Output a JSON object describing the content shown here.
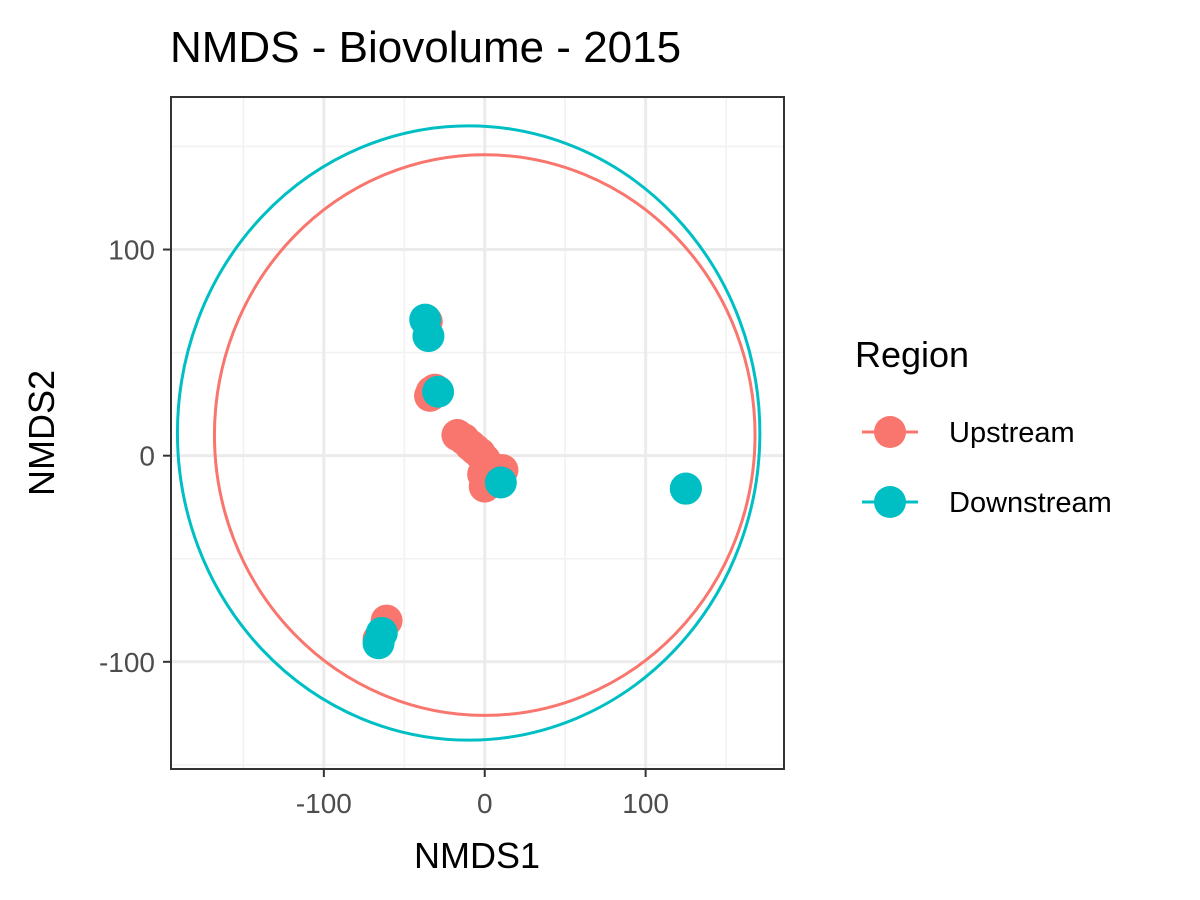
{
  "chart_data": {
    "type": "scatter",
    "title": "NMDS - Biovolume - 2015",
    "xlabel": "NMDS1",
    "ylabel": "NMDS2",
    "xlim": [
      -195,
      186
    ],
    "ylim": [
      -152,
      174
    ],
    "x_ticks": [
      -100,
      0,
      100
    ],
    "y_ticks": [
      -100,
      0,
      100
    ],
    "x_tick_labels": [
      "-100",
      "0",
      "100"
    ],
    "y_tick_labels": [
      "-100",
      "0",
      "100"
    ],
    "grid": true,
    "legend": {
      "title": "Region",
      "position": "right"
    },
    "series": [
      {
        "name": "Upstream",
        "color": "#F8766D",
        "points": [
          {
            "x": -36,
            "y": 65
          },
          {
            "x": -33,
            "y": 31
          },
          {
            "x": -31,
            "y": 32
          },
          {
            "x": -34,
            "y": 29
          },
          {
            "x": -17,
            "y": 10
          },
          {
            "x": -13,
            "y": 8
          },
          {
            "x": -9,
            "y": 5
          },
          {
            "x": -6,
            "y": 3
          },
          {
            "x": -3,
            "y": 1
          },
          {
            "x": 0,
            "y": -2
          },
          {
            "x": 3,
            "y": -5
          },
          {
            "x": 6,
            "y": -7
          },
          {
            "x": 11,
            "y": -7
          },
          {
            "x": -1,
            "y": -9
          },
          {
            "x": 0,
            "y": -15
          },
          {
            "x": -61,
            "y": -80
          },
          {
            "x": -66,
            "y": -89
          }
        ],
        "ellipse": {
          "cx": 0,
          "cy": 10,
          "rx": 168,
          "ry": 136
        }
      },
      {
        "name": "Downstream",
        "color": "#00BFC4",
        "points": [
          {
            "x": -37,
            "y": 66
          },
          {
            "x": -35,
            "y": 58
          },
          {
            "x": -29,
            "y": 31
          },
          {
            "x": 10,
            "y": -13
          },
          {
            "x": 125,
            "y": -16
          },
          {
            "x": 125,
            "y": -16
          },
          {
            "x": -64,
            "y": -86
          },
          {
            "x": -66,
            "y": -91
          }
        ],
        "ellipse": {
          "cx": -10,
          "cy": 11,
          "rx": 181,
          "ry": 149
        }
      }
    ]
  }
}
